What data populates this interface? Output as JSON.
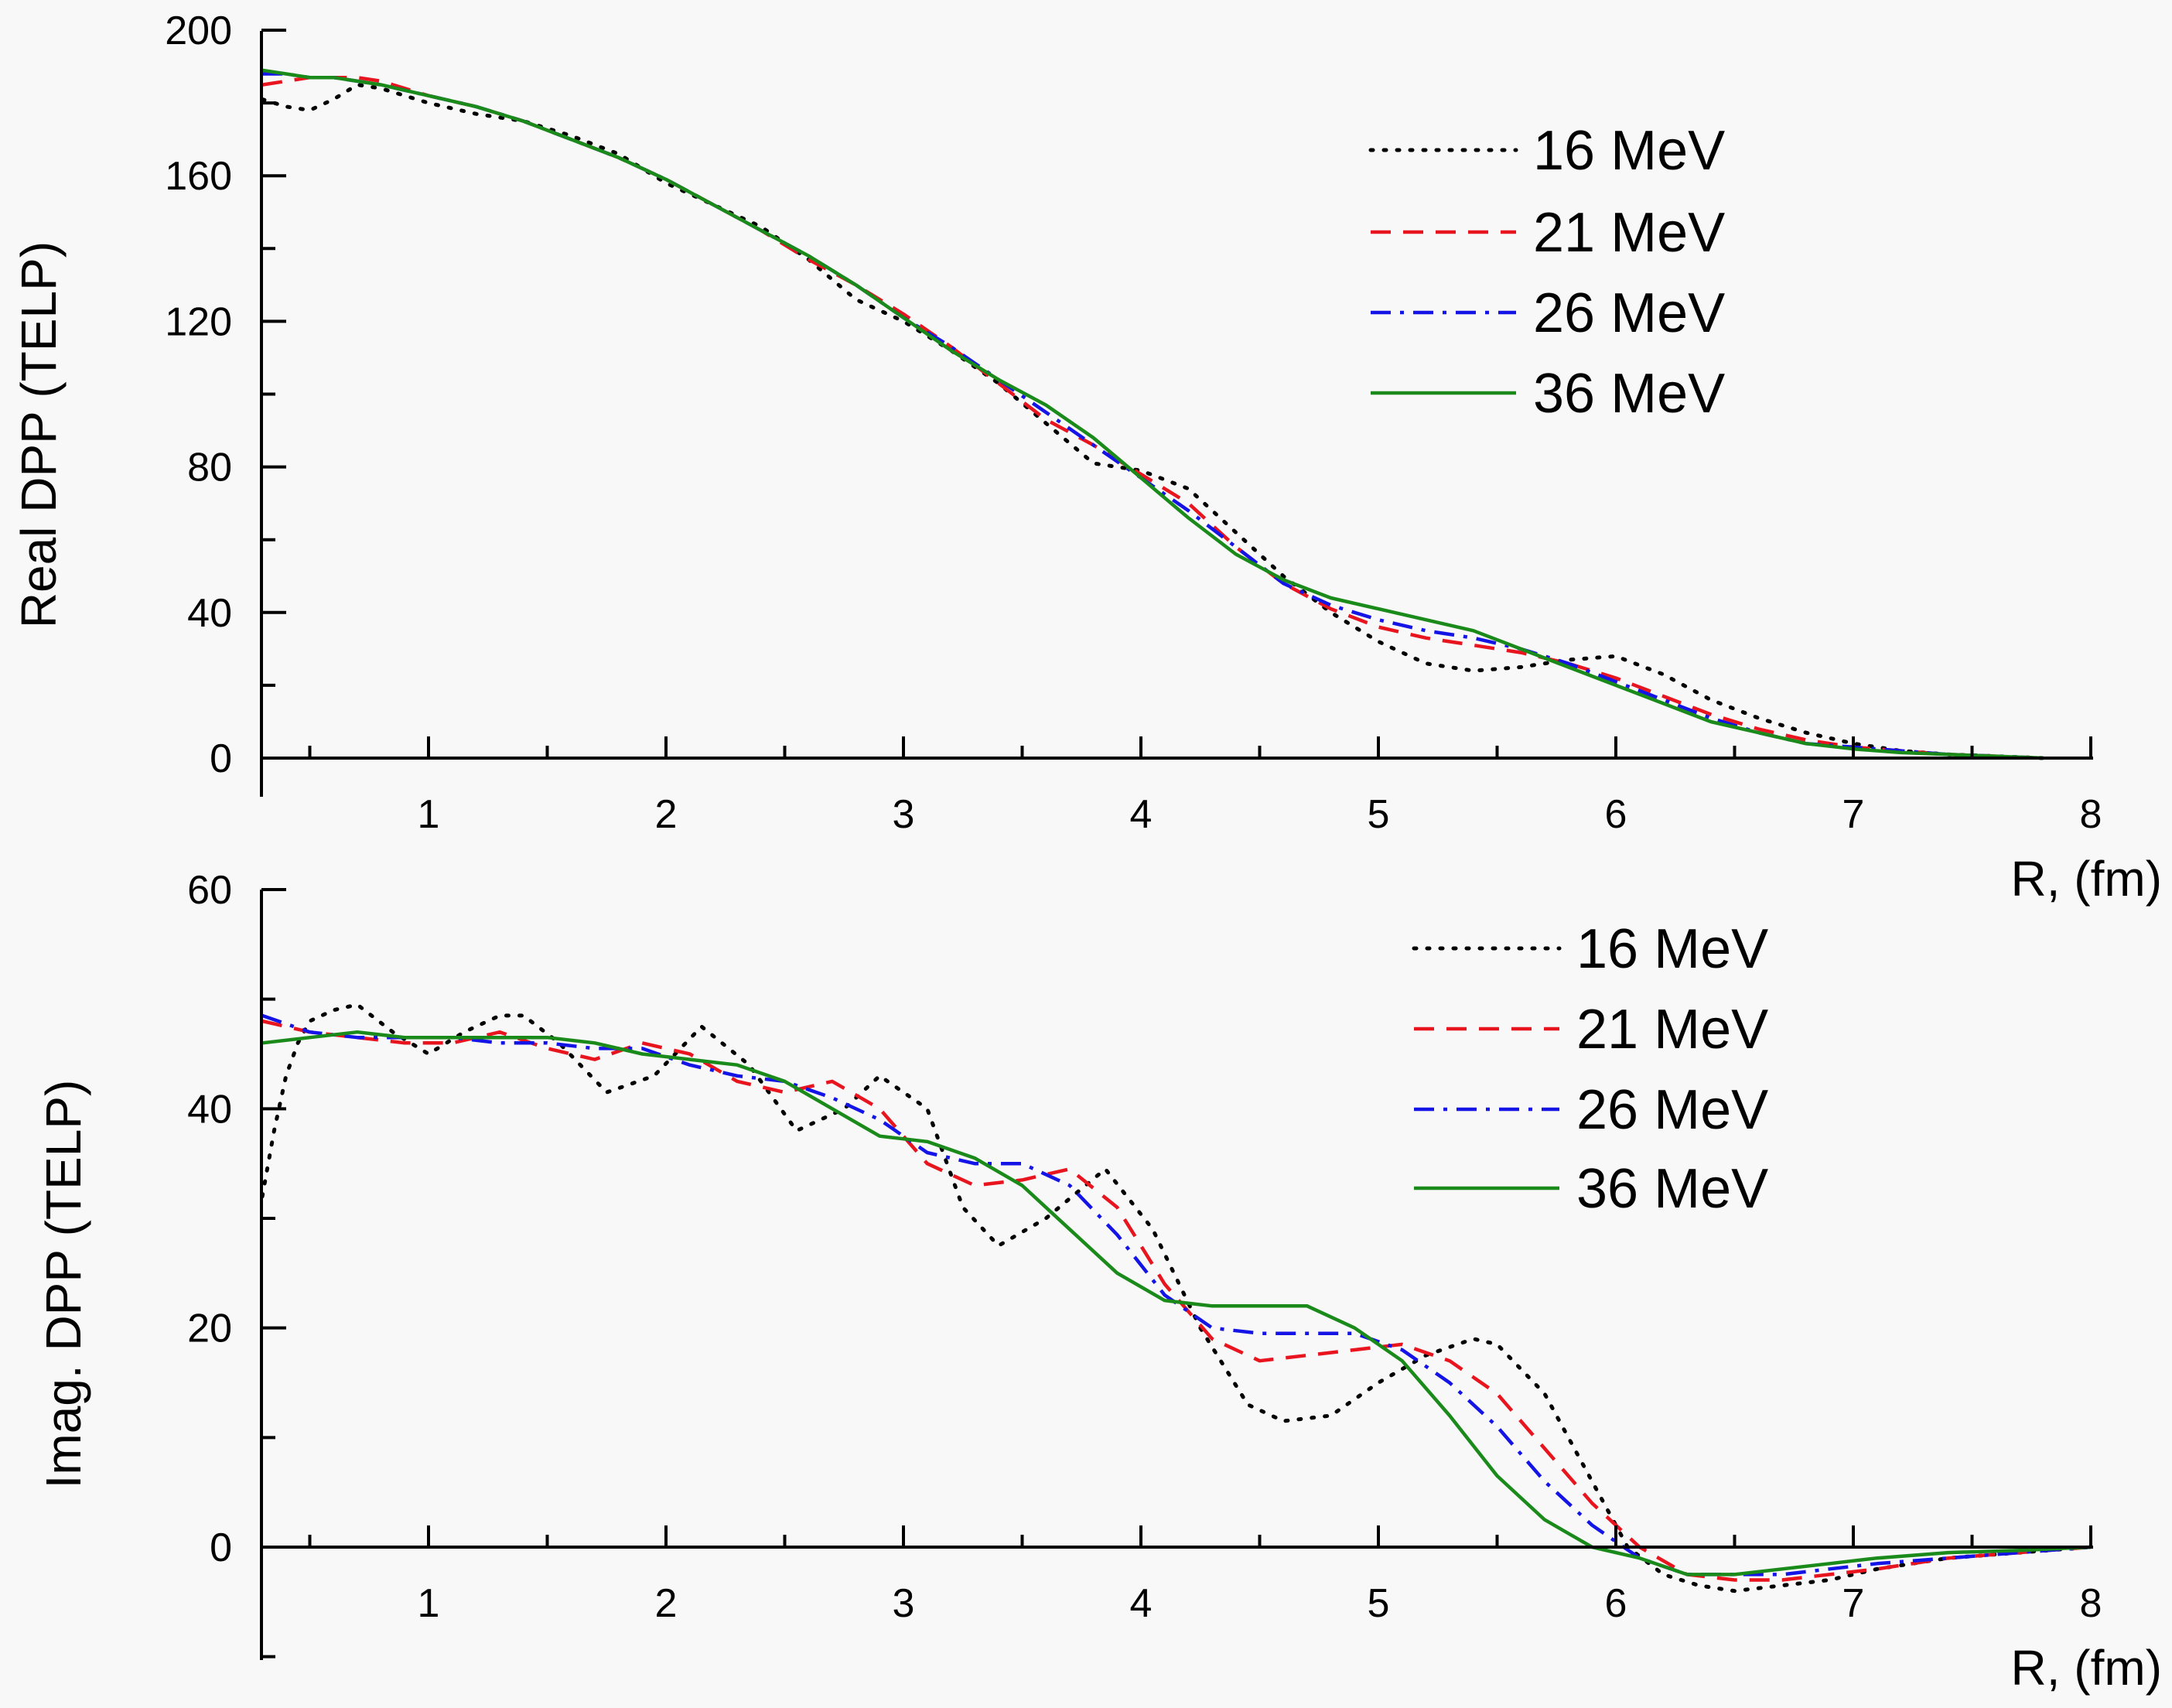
{
  "chart_data": [
    {
      "type": "line",
      "ylabel": "Real DPP (TELP)",
      "xlabel": "R, (fm)",
      "xlim": [
        0.3,
        8.0
      ],
      "ylim": [
        0,
        200
      ],
      "x_ticks": [
        "1",
        "2",
        "3",
        "4",
        "5",
        "6",
        "7",
        "8"
      ],
      "y_ticks": [
        "0",
        "40",
        "80",
        "120",
        "160",
        "200"
      ],
      "legend_position": "top-right",
      "series": [
        {
          "name": "16 MeV",
          "style": "dotted",
          "color": "#000000",
          "x": [
            0.3,
            0.4,
            0.5,
            0.6,
            0.7,
            0.8,
            1.0,
            1.2,
            1.4,
            1.6,
            1.8,
            2.0,
            2.2,
            2.4,
            2.6,
            2.8,
            3.0,
            3.2,
            3.4,
            3.6,
            3.8,
            4.0,
            4.2,
            4.4,
            4.6,
            4.8,
            5.0,
            5.2,
            5.4,
            5.6,
            5.8,
            6.0,
            6.2,
            6.4,
            6.6,
            6.8,
            7.0,
            7.2,
            7.4,
            7.6,
            7.8
          ],
          "y": [
            181,
            179,
            178,
            181,
            185,
            184,
            180,
            177,
            175,
            171,
            166,
            158,
            152,
            146,
            137,
            126,
            120,
            112,
            103,
            92,
            81,
            79,
            74,
            62,
            50,
            40,
            32,
            26,
            24,
            25,
            27,
            28,
            23,
            16,
            11,
            7,
            4,
            2,
            1,
            0.5,
            0
          ]
        },
        {
          "name": "21 MeV",
          "style": "dashed",
          "color": "#e8141e",
          "x": [
            0.3,
            0.4,
            0.5,
            0.6,
            0.7,
            0.8,
            1.0,
            1.2,
            1.4,
            1.6,
            1.8,
            2.0,
            2.2,
            2.4,
            2.6,
            2.8,
            3.0,
            3.2,
            3.4,
            3.6,
            3.8,
            4.0,
            4.2,
            4.4,
            4.6,
            4.8,
            5.0,
            5.2,
            5.4,
            5.6,
            5.8,
            6.0,
            6.2,
            6.4,
            6.6,
            6.8,
            7.0,
            7.2,
            7.4,
            7.6,
            7.8
          ],
          "y": [
            185,
            186,
            187,
            187,
            187,
            186,
            182,
            179,
            175,
            170,
            165,
            159,
            152,
            145,
            137,
            130,
            122,
            113,
            103,
            93,
            86,
            78,
            70,
            58,
            48,
            41,
            36,
            33,
            31,
            29,
            26,
            22,
            17,
            12,
            8,
            5,
            3,
            2,
            1,
            0.5,
            0
          ]
        },
        {
          "name": "26 MeV",
          "style": "dashdot",
          "color": "#1414e6",
          "x": [
            0.3,
            0.4,
            0.5,
            0.6,
            0.7,
            0.8,
            1.0,
            1.2,
            1.4,
            1.6,
            1.8,
            2.0,
            2.2,
            2.4,
            2.6,
            2.8,
            3.0,
            3.2,
            3.4,
            3.6,
            3.8,
            4.0,
            4.2,
            4.4,
            4.6,
            4.8,
            5.0,
            5.2,
            5.4,
            5.6,
            5.8,
            6.0,
            6.2,
            6.4,
            6.6,
            6.8,
            7.0,
            7.2,
            7.4,
            7.6,
            7.8
          ],
          "y": [
            188,
            188,
            187,
            187,
            186,
            185,
            182,
            179,
            175,
            170,
            165,
            159,
            152,
            145,
            138,
            130,
            121,
            113,
            104,
            95,
            86,
            77,
            68,
            58,
            48,
            42,
            38,
            35,
            33,
            30,
            26,
            21,
            16,
            11,
            7,
            4,
            3,
            2,
            1,
            0.5,
            0
          ]
        },
        {
          "name": "36 MeV",
          "style": "solid",
          "color": "#1a8a1a",
          "x": [
            0.3,
            0.4,
            0.5,
            0.6,
            0.7,
            0.8,
            1.0,
            1.2,
            1.4,
            1.6,
            1.8,
            2.0,
            2.2,
            2.4,
            2.6,
            2.8,
            3.0,
            3.2,
            3.4,
            3.6,
            3.8,
            4.0,
            4.2,
            4.4,
            4.6,
            4.8,
            5.0,
            5.2,
            5.4,
            5.6,
            5.8,
            6.0,
            6.2,
            6.4,
            6.6,
            6.8,
            7.0,
            7.2,
            7.4,
            7.6,
            7.8
          ],
          "y": [
            189,
            188,
            187,
            187,
            186,
            185,
            182,
            179,
            175,
            170,
            165,
            159,
            152,
            145,
            138,
            130,
            121,
            112,
            104,
            97,
            88,
            77,
            66,
            56,
            49,
            44,
            41,
            38,
            35,
            30,
            25,
            20,
            15,
            10,
            7,
            4,
            2.5,
            1.5,
            1,
            0.5,
            0
          ]
        }
      ]
    },
    {
      "type": "line",
      "ylabel": "Imag. DPP (TELP)",
      "xlabel": "R, (fm)",
      "xlim": [
        0.3,
        8.0
      ],
      "ylim": [
        -10,
        60
      ],
      "x_ticks": [
        "1",
        "2",
        "3",
        "4",
        "5",
        "6",
        "7",
        "8"
      ],
      "y_ticks": [
        "0",
        "20",
        "40",
        "60"
      ],
      "legend_position": "top-right",
      "series": [
        {
          "name": "16 MeV",
          "style": "dotted",
          "color": "#000000",
          "x": [
            0.3,
            0.35,
            0.4,
            0.45,
            0.5,
            0.6,
            0.7,
            0.85,
            1.0,
            1.15,
            1.3,
            1.4,
            1.55,
            1.75,
            1.95,
            2.15,
            2.35,
            2.55,
            2.75,
            2.9,
            3.1,
            3.25,
            3.4,
            3.6,
            3.85,
            4.05,
            4.25,
            4.45,
            4.6,
            4.8,
            5.0,
            5.2,
            5.4,
            5.5,
            5.7,
            5.9,
            6.05,
            6.2,
            6.35,
            6.5,
            6.7,
            6.9,
            7.1,
            7.4,
            7.7,
            8.0
          ],
          "y": [
            32,
            38,
            43,
            46,
            48,
            49,
            49.5,
            47,
            45,
            47,
            48.5,
            48.5,
            46,
            41.5,
            43,
            47.5,
            44,
            38,
            40,
            43,
            40,
            31,
            27.5,
            30,
            34.5,
            29,
            20,
            13,
            11.5,
            12,
            15,
            17.5,
            19,
            18.5,
            14,
            6,
            0,
            -2.5,
            -3.5,
            -4,
            -3.5,
            -3,
            -2,
            -1,
            -0.5,
            0
          ]
        },
        {
          "name": "21 MeV",
          "style": "dashed",
          "color": "#e8141e",
          "x": [
            0.3,
            0.5,
            0.7,
            0.9,
            1.1,
            1.3,
            1.5,
            1.7,
            1.9,
            2.1,
            2.3,
            2.5,
            2.7,
            2.9,
            3.1,
            3.3,
            3.5,
            3.7,
            3.9,
            4.1,
            4.3,
            4.5,
            4.7,
            4.9,
            5.1,
            5.3,
            5.5,
            5.7,
            5.9,
            6.1,
            6.3,
            6.5,
            6.7,
            6.9,
            7.1,
            7.4,
            7.7,
            8.0
          ],
          "y": [
            48,
            47,
            46.5,
            46,
            46,
            47,
            45.5,
            44.5,
            46,
            45,
            42.5,
            41.5,
            42.5,
            40,
            35,
            33,
            33.5,
            34.5,
            31,
            24,
            19,
            17,
            17.5,
            18,
            18.5,
            17,
            14,
            9,
            4,
            0,
            -2.5,
            -3,
            -3,
            -2.5,
            -2,
            -1,
            -0.5,
            0
          ]
        },
        {
          "name": "26 MeV",
          "style": "dashdot",
          "color": "#1414e6",
          "x": [
            0.3,
            0.5,
            0.7,
            0.9,
            1.1,
            1.3,
            1.5,
            1.7,
            1.9,
            2.1,
            2.3,
            2.5,
            2.7,
            2.9,
            3.1,
            3.3,
            3.5,
            3.7,
            3.9,
            4.1,
            4.3,
            4.5,
            4.7,
            4.9,
            5.1,
            5.3,
            5.5,
            5.7,
            5.9,
            6.1,
            6.3,
            6.5,
            6.7,
            6.9,
            7.1,
            7.4,
            7.7,
            8.0
          ],
          "y": [
            48.5,
            47,
            46.5,
            46.5,
            46.5,
            46,
            46,
            45.5,
            45.5,
            44,
            43,
            42.5,
            41,
            39,
            36,
            35,
            35,
            33,
            28.5,
            23,
            20,
            19.5,
            19.5,
            19.5,
            18,
            15,
            11,
            6,
            2,
            -1,
            -2.5,
            -2.5,
            -2.5,
            -2,
            -1.5,
            -1,
            -0.5,
            0
          ]
        },
        {
          "name": "36 MeV",
          "style": "solid",
          "color": "#1a8a1a",
          "x": [
            0.3,
            0.5,
            0.7,
            0.9,
            1.1,
            1.3,
            1.5,
            1.7,
            1.9,
            2.1,
            2.3,
            2.5,
            2.7,
            2.9,
            3.1,
            3.3,
            3.5,
            3.7,
            3.9,
            4.1,
            4.3,
            4.5,
            4.7,
            4.9,
            5.1,
            5.3,
            5.5,
            5.7,
            5.9,
            6.1,
            6.3,
            6.5,
            6.7,
            6.9,
            7.1,
            7.4,
            7.7,
            8.0
          ],
          "y": [
            46,
            46.5,
            47,
            46.5,
            46.5,
            46.5,
            46.5,
            46,
            45,
            44.5,
            44,
            42.5,
            40,
            37.5,
            37,
            35.5,
            33,
            29,
            25,
            22.5,
            22,
            22,
            22,
            20,
            17,
            12,
            6.5,
            2.5,
            0,
            -1,
            -2.5,
            -2.5,
            -2,
            -1.5,
            -1,
            -0.5,
            -0.3,
            0
          ]
        }
      ]
    }
  ]
}
